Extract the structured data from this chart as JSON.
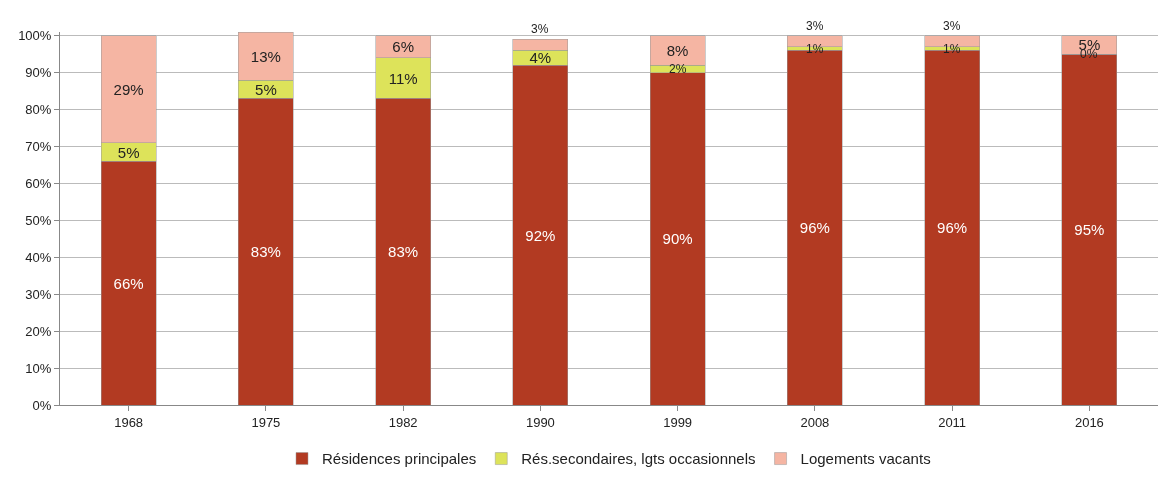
{
  "chart_data": {
    "type": "bar",
    "stacked": true,
    "categories": [
      "1968",
      "1975",
      "1982",
      "1990",
      "1999",
      "2008",
      "2011",
      "2016"
    ],
    "series": [
      {
        "name": "Résidences principales",
        "color": "#b23a22",
        "values": [
          66,
          83,
          83,
          92,
          90,
          96,
          96,
          95
        ],
        "value_labels": [
          "66%",
          "83%",
          "83%",
          "92%",
          "90%",
          "96%",
          "96%",
          "95%"
        ]
      },
      {
        "name": "Rés.secondaires, lgts occasionnels",
        "color": "#dde35a",
        "values": [
          5,
          5,
          11,
          4,
          2,
          1,
          1,
          0
        ],
        "value_labels": [
          "5%",
          "5%",
          "11%",
          "4%",
          "2%",
          "1%",
          "1%",
          "0%"
        ]
      },
      {
        "name": "Logements vacants",
        "color": "#f5b5a3",
        "values": [
          29,
          13,
          6,
          3,
          8,
          3,
          3,
          5
        ],
        "value_labels": [
          "29%",
          "13%",
          "6%",
          "3%",
          "8%",
          "3%",
          "3%",
          "5%"
        ]
      }
    ],
    "ylim": [
      0,
      101
    ],
    "yticks": [
      {
        "value": 0,
        "label": "0%"
      },
      {
        "value": 10,
        "label": "10%"
      },
      {
        "value": 20,
        "label": "20%"
      },
      {
        "value": 30,
        "label": "30%"
      },
      {
        "value": 40,
        "label": "40%"
      },
      {
        "value": 50,
        "label": "50%"
      },
      {
        "value": 60,
        "label": "60%"
      },
      {
        "value": 70,
        "label": "70%"
      },
      {
        "value": 80,
        "label": "80%"
      },
      {
        "value": 90,
        "label": "90%"
      },
      {
        "value": 100,
        "label": "100%"
      }
    ],
    "grid": "y",
    "legend": "bottom"
  }
}
